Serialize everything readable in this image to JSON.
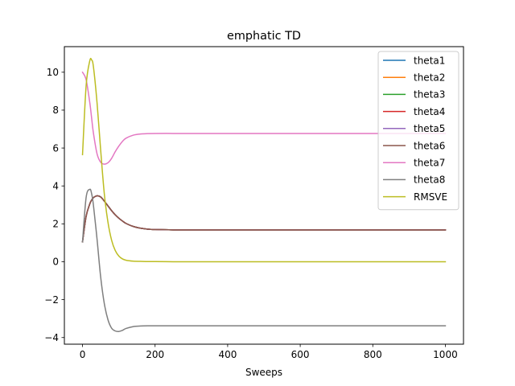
{
  "chart_data": {
    "type": "line",
    "title": "emphatic TD",
    "xlabel": "Sweeps",
    "ylabel": "",
    "xlim": [
      -50,
      1050
    ],
    "ylim": [
      -4.35,
      11.35
    ],
    "xticks": [
      0,
      200,
      400,
      600,
      800,
      1000
    ],
    "yticks": [
      -4,
      -2,
      0,
      2,
      4,
      6,
      8,
      10
    ],
    "grid": false,
    "legend_position": "top-right",
    "x": [
      0,
      10,
      20,
      25,
      30,
      40,
      50,
      60,
      70,
      80,
      90,
      100,
      110,
      120,
      140,
      160,
      180,
      200,
      250,
      300,
      400,
      600,
      800,
      1000
    ],
    "series": [
      {
        "name": "theta1",
        "color": "#1f77b4",
        "values": [
          1.05,
          2.4,
          3.05,
          3.25,
          3.38,
          3.48,
          3.42,
          3.2,
          2.95,
          2.7,
          2.48,
          2.3,
          2.15,
          2.02,
          1.86,
          1.77,
          1.72,
          1.7,
          1.68,
          1.68,
          1.68,
          1.68,
          1.68,
          1.68
        ]
      },
      {
        "name": "theta2",
        "color": "#ff7f0e",
        "values": [
          1.05,
          2.4,
          3.05,
          3.25,
          3.38,
          3.48,
          3.42,
          3.2,
          2.95,
          2.7,
          2.48,
          2.3,
          2.15,
          2.02,
          1.86,
          1.77,
          1.72,
          1.7,
          1.68,
          1.68,
          1.68,
          1.68,
          1.68,
          1.68
        ]
      },
      {
        "name": "theta3",
        "color": "#2ca02c",
        "values": [
          1.05,
          2.4,
          3.05,
          3.25,
          3.38,
          3.48,
          3.42,
          3.2,
          2.95,
          2.7,
          2.48,
          2.3,
          2.15,
          2.02,
          1.86,
          1.77,
          1.72,
          1.7,
          1.68,
          1.68,
          1.68,
          1.68,
          1.68,
          1.68
        ]
      },
      {
        "name": "theta4",
        "color": "#d62728",
        "values": [
          1.05,
          2.4,
          3.05,
          3.25,
          3.38,
          3.48,
          3.42,
          3.2,
          2.95,
          2.7,
          2.48,
          2.3,
          2.15,
          2.02,
          1.86,
          1.77,
          1.72,
          1.7,
          1.68,
          1.68,
          1.68,
          1.68,
          1.68,
          1.68
        ]
      },
      {
        "name": "theta5",
        "color": "#9467bd",
        "values": [
          1.05,
          2.4,
          3.05,
          3.25,
          3.38,
          3.48,
          3.42,
          3.2,
          2.95,
          2.7,
          2.48,
          2.3,
          2.15,
          2.02,
          1.86,
          1.77,
          1.72,
          1.7,
          1.68,
          1.68,
          1.68,
          1.68,
          1.68,
          1.68
        ]
      },
      {
        "name": "theta6",
        "color": "#8c564b",
        "values": [
          1.05,
          2.4,
          3.05,
          3.25,
          3.38,
          3.48,
          3.42,
          3.2,
          2.95,
          2.7,
          2.48,
          2.3,
          2.15,
          2.02,
          1.86,
          1.77,
          1.72,
          1.7,
          1.68,
          1.68,
          1.68,
          1.68,
          1.68,
          1.68
        ]
      },
      {
        "name": "theta7",
        "color": "#e377c2",
        "values": [
          10.0,
          9.6,
          8.4,
          7.6,
          6.8,
          5.7,
          5.25,
          5.15,
          5.22,
          5.45,
          5.8,
          6.1,
          6.35,
          6.52,
          6.68,
          6.74,
          6.76,
          6.77,
          6.77,
          6.77,
          6.77,
          6.77,
          6.77,
          6.77
        ]
      },
      {
        "name": "theta8",
        "color": "#7f7f7f",
        "values": [
          1.05,
          3.4,
          3.82,
          3.6,
          3.0,
          1.2,
          -0.8,
          -2.2,
          -3.05,
          -3.5,
          -3.65,
          -3.68,
          -3.62,
          -3.52,
          -3.42,
          -3.39,
          -3.38,
          -3.38,
          -3.38,
          -3.38,
          -3.38,
          -3.38,
          -3.38,
          -3.38
        ]
      },
      {
        "name": "RMSVE",
        "color": "#bcbd22",
        "values": [
          5.65,
          9.3,
          10.6,
          10.65,
          10.3,
          8.4,
          5.9,
          3.6,
          2.1,
          1.15,
          0.6,
          0.3,
          0.15,
          0.08,
          0.03,
          0.02,
          0.01,
          0.01,
          0.0,
          0.0,
          0.0,
          0.0,
          0.0,
          0.0
        ]
      }
    ]
  }
}
